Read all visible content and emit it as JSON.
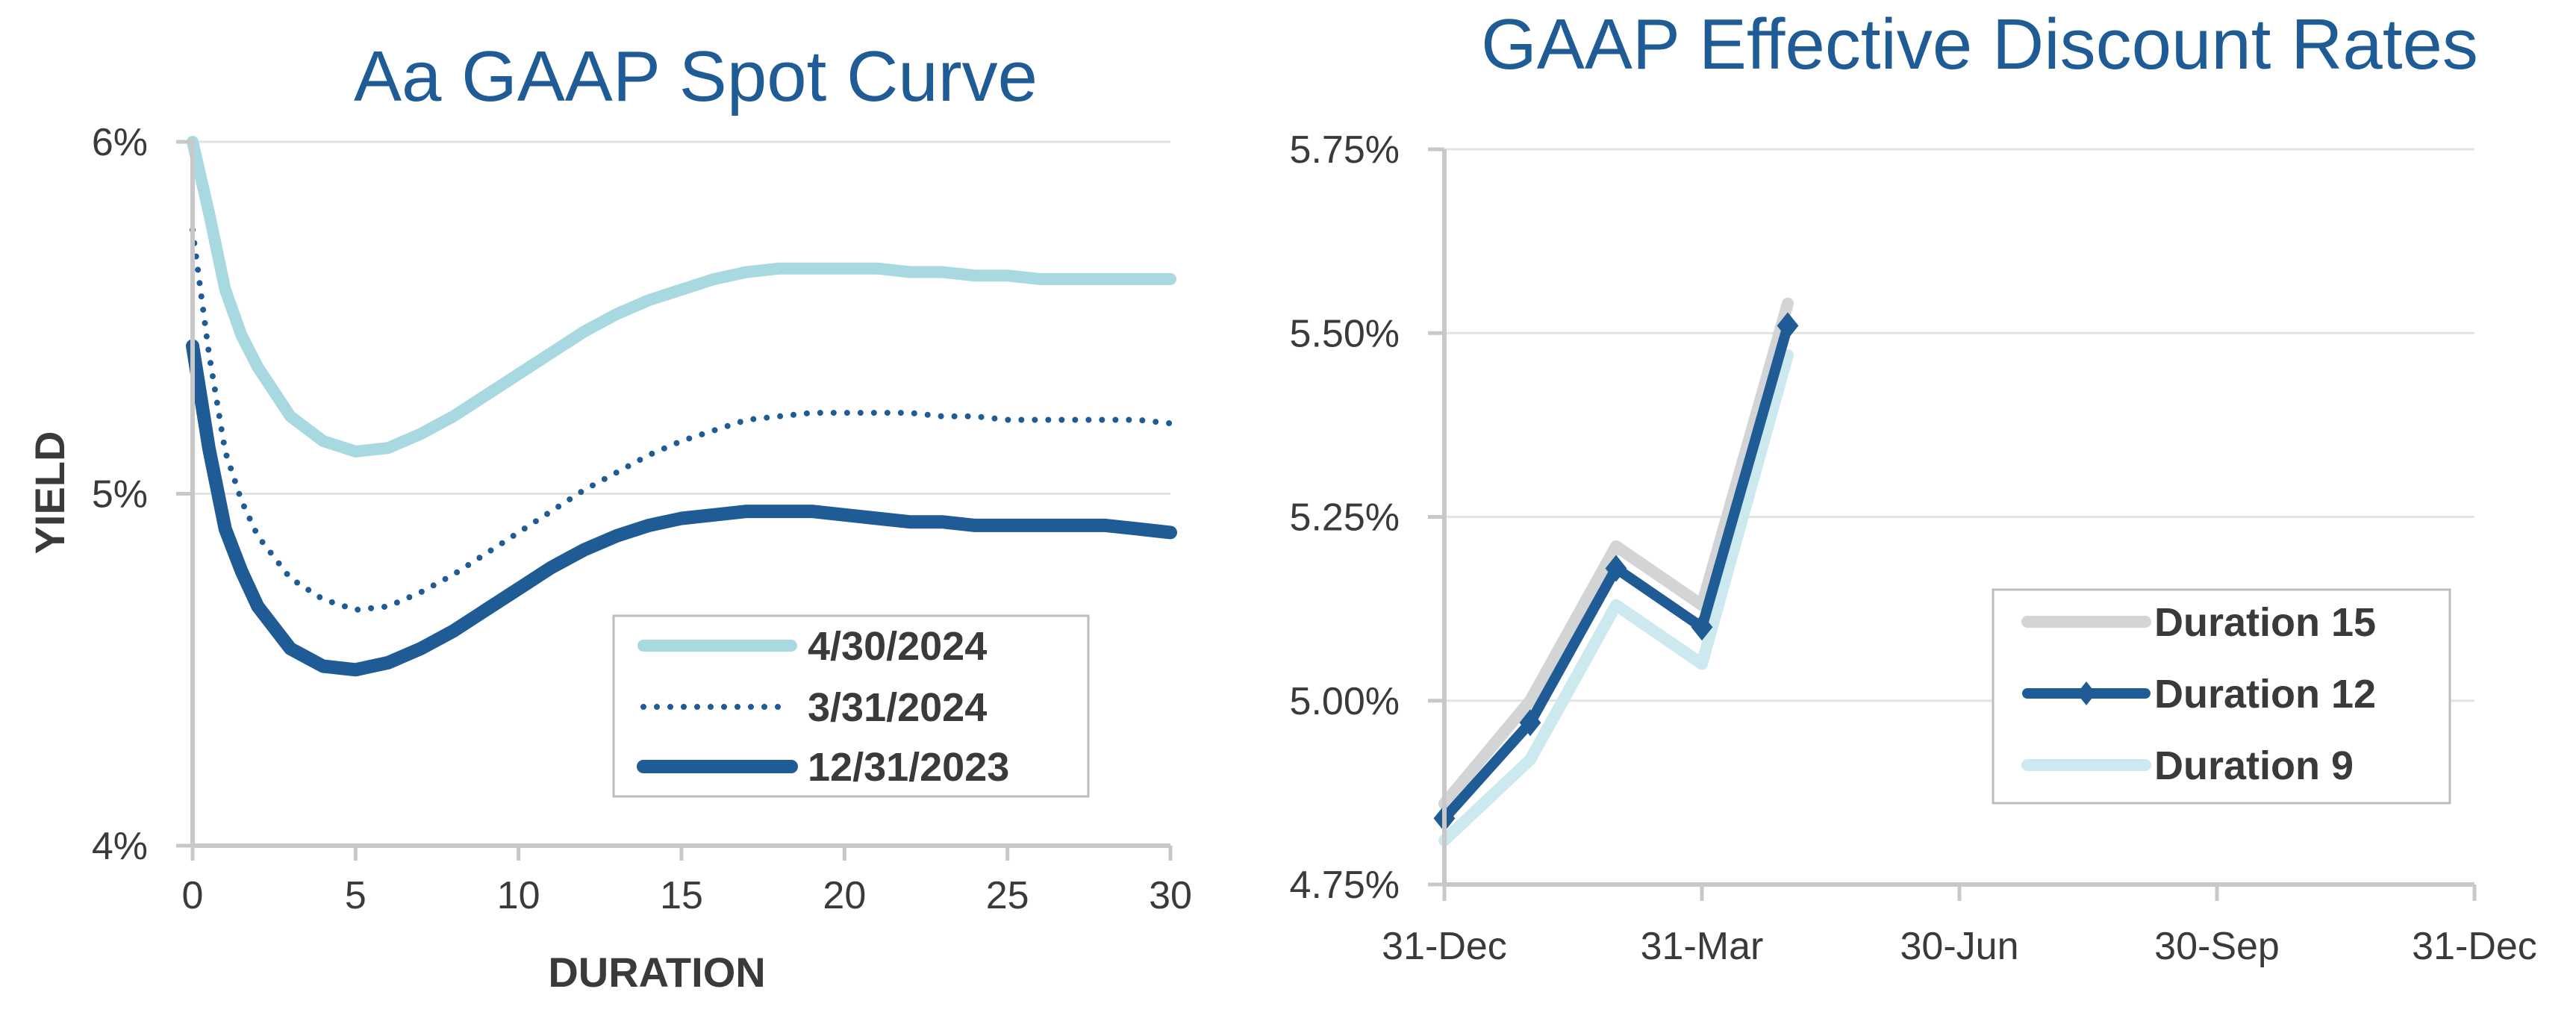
{
  "chart_data": [
    {
      "type": "line",
      "title": "Aa GAAP Spot Curve",
      "xlabel": "DURATION",
      "ylabel": "YIELD",
      "xlim": [
        0,
        30
      ],
      "ylim": [
        4,
        6
      ],
      "x_ticks": [
        0,
        5,
        10,
        15,
        20,
        25,
        30
      ],
      "x_tick_labels": [
        "0",
        "5",
        "10",
        "15",
        "20",
        "25",
        "30"
      ],
      "y_ticks": [
        4,
        5,
        6
      ],
      "y_tick_labels": [
        "4%",
        "5%",
        "6%"
      ],
      "grid": "horizontal",
      "legend": "bottom-right",
      "series": [
        {
          "name": "4/30/2024",
          "color": "#a8d8e0",
          "style": "solid",
          "x": [
            0,
            0.5,
            1,
            1.5,
            2,
            3,
            4,
            5,
            6,
            7,
            8,
            9,
            10,
            11,
            12,
            13,
            14,
            15,
            16,
            17,
            18,
            19,
            20,
            21,
            22,
            23,
            24,
            25,
            26,
            27,
            28,
            29,
            30
          ],
          "values": [
            6.0,
            5.8,
            5.58,
            5.45,
            5.36,
            5.22,
            5.15,
            5.12,
            5.13,
            5.17,
            5.22,
            5.28,
            5.34,
            5.4,
            5.46,
            5.51,
            5.55,
            5.58,
            5.61,
            5.63,
            5.64,
            5.64,
            5.64,
            5.64,
            5.63,
            5.63,
            5.62,
            5.62,
            5.61,
            5.61,
            5.61,
            5.61,
            5.61
          ]
        },
        {
          "name": "3/31/2024",
          "color": "#1f5b94",
          "style": "dotted",
          "x": [
            0,
            0.5,
            1,
            1.5,
            2,
            3,
            4,
            5,
            6,
            7,
            8,
            9,
            10,
            11,
            12,
            13,
            14,
            15,
            16,
            17,
            18,
            19,
            20,
            21,
            22,
            23,
            24,
            25,
            26,
            27,
            28,
            29,
            30
          ],
          "values": [
            5.75,
            5.4,
            5.12,
            4.98,
            4.88,
            4.76,
            4.7,
            4.67,
            4.68,
            4.72,
            4.77,
            4.83,
            4.89,
            4.95,
            5.01,
            5.06,
            5.11,
            5.15,
            5.18,
            5.21,
            5.22,
            5.23,
            5.23,
            5.23,
            5.23,
            5.22,
            5.22,
            5.21,
            5.21,
            5.21,
            5.21,
            5.21,
            5.2
          ]
        },
        {
          "name": "12/31/2023",
          "color": "#1f5b94",
          "style": "thick",
          "x": [
            0,
            0.5,
            1,
            1.5,
            2,
            3,
            4,
            5,
            6,
            7,
            8,
            9,
            10,
            11,
            12,
            13,
            14,
            15,
            16,
            17,
            18,
            19,
            20,
            21,
            22,
            23,
            24,
            25,
            26,
            27,
            28,
            29,
            30
          ],
          "values": [
            5.42,
            5.13,
            4.9,
            4.78,
            4.68,
            4.56,
            4.51,
            4.5,
            4.52,
            4.56,
            4.61,
            4.67,
            4.73,
            4.79,
            4.84,
            4.88,
            4.91,
            4.93,
            4.94,
            4.95,
            4.95,
            4.95,
            4.94,
            4.93,
            4.92,
            4.92,
            4.91,
            4.91,
            4.91,
            4.91,
            4.91,
            4.9,
            4.89
          ]
        }
      ]
    },
    {
      "type": "line",
      "title": "GAAP Effective Discount Rates",
      "xlim": [
        0,
        12
      ],
      "ylim": [
        4.75,
        5.75
      ],
      "x_ticks": [
        0,
        3,
        6,
        9,
        12
      ],
      "x_tick_labels": [
        "31-Dec",
        "31-Mar",
        "30-Jun",
        "30-Sep",
        "31-Dec"
      ],
      "y_ticks": [
        4.75,
        5.0,
        5.25,
        5.5,
        5.75
      ],
      "y_tick_labels": [
        "4.75%",
        "5.00%",
        "5.25%",
        "5.50%",
        "5.75%"
      ],
      "grid": "horizontal",
      "legend": "bottom-right",
      "series": [
        {
          "name": "Duration 15",
          "color": "#d3d4d6",
          "markers": false,
          "x": [
            0,
            1,
            2,
            3,
            4
          ],
          "values": [
            4.86,
            5.0,
            5.21,
            5.13,
            5.54
          ]
        },
        {
          "name": "Duration 12",
          "color": "#1f5b94",
          "markers": true,
          "x": [
            0,
            1,
            2,
            3,
            4
          ],
          "values": [
            4.84,
            4.97,
            5.18,
            5.1,
            5.51
          ]
        },
        {
          "name": "Duration 9",
          "color": "#cde9f0",
          "markers": false,
          "x": [
            0,
            1,
            2,
            3,
            4
          ],
          "values": [
            4.81,
            4.92,
            5.13,
            5.05,
            5.47
          ]
        }
      ]
    }
  ]
}
